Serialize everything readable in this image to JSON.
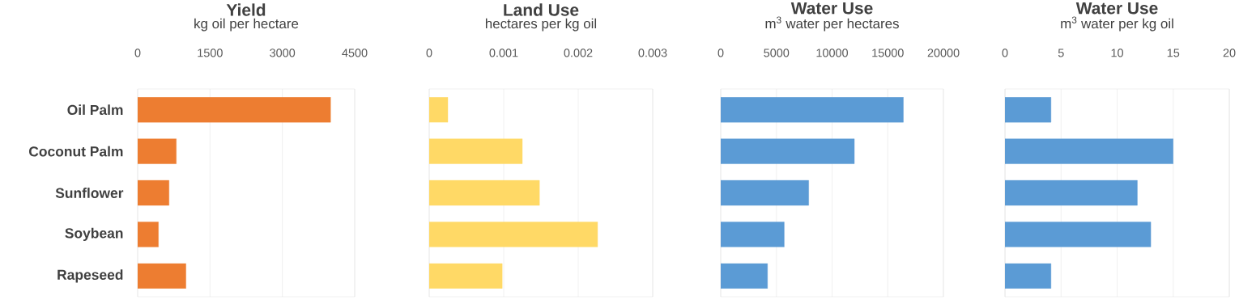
{
  "chart_data": [
    {
      "type": "bar",
      "orientation": "horizontal",
      "title": "Yield",
      "subtitle": "kg oil per hectare",
      "categories": [
        "Oil Palm",
        "Coconut Palm",
        "Sunflower",
        "Soybean",
        "Rapeseed"
      ],
      "values": [
        4000,
        800,
        650,
        430,
        1000
      ],
      "color": "#ed7d31",
      "xlim": [
        0,
        4500
      ],
      "xticks": [
        0,
        1500,
        3000,
        4500
      ],
      "grid": "x"
    },
    {
      "type": "bar",
      "orientation": "horizontal",
      "title": "Land Use",
      "subtitle": "hectares per kg oil",
      "categories": [
        null,
        null,
        null,
        null,
        null
      ],
      "values": [
        0.00025,
        0.00125,
        0.00148,
        0.00226,
        0.00098
      ],
      "color": "#ffd966",
      "xlim": [
        0,
        0.003
      ],
      "xticks": [
        0,
        0.001,
        0.002,
        0.003
      ],
      "grid": "x"
    },
    {
      "type": "bar",
      "orientation": "horizontal",
      "title": "Water Use",
      "subtitle": "m$^{3}$ water per hectares",
      "categories": [
        null,
        null,
        null,
        null,
        null
      ],
      "values": [
        16400,
        12000,
        7900,
        5700,
        4200
      ],
      "color": "#5b9bd5",
      "xlim": [
        0,
        20000
      ],
      "xticks": [
        0,
        5000,
        10000,
        15000,
        20000
      ],
      "grid": "x"
    },
    {
      "type": "bar",
      "orientation": "horizontal",
      "title": "Water Use",
      "subtitle": "m$^{3}$ water per kg oil",
      "categories": [
        null,
        null,
        null,
        null,
        null
      ],
      "values": [
        4.1,
        15,
        11.8,
        13,
        4.1
      ],
      "color": "#5b9bd5",
      "xlim": [
        0,
        20
      ],
      "xticks": [
        0,
        5,
        10,
        15,
        20
      ],
      "grid": "x"
    }
  ]
}
